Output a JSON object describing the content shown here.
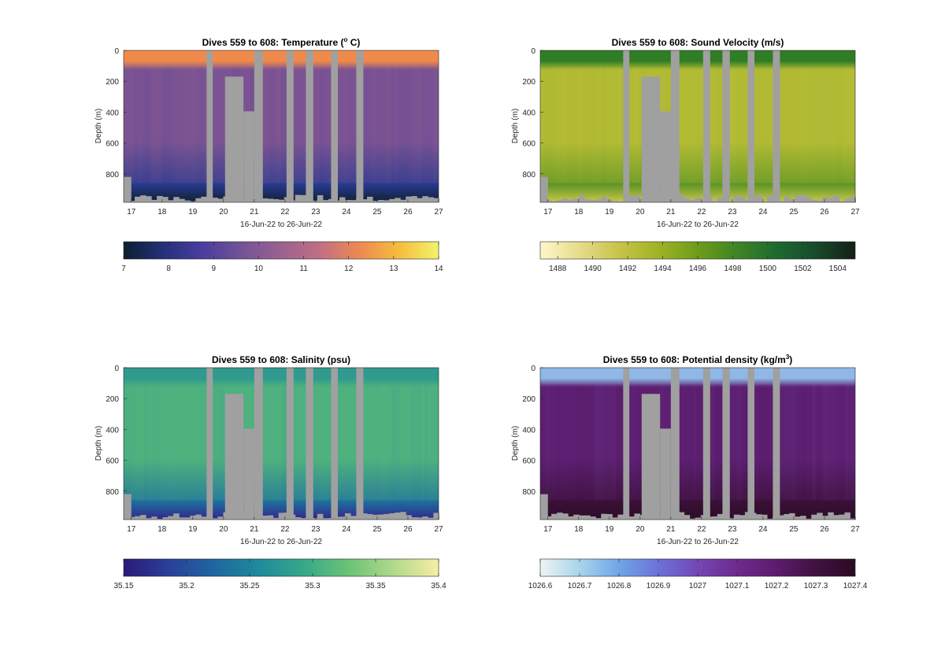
{
  "chart_data": [
    {
      "type": "heatmap",
      "title": "Dives 559 to 608: Temperature (",
      "title_sup": "o",
      "title_tail": " C)",
      "xlabel": "16-Jun-22 to 26-Jun-22",
      "ylabel": "Depth (m)",
      "x_ticks": [
        "17",
        "18",
        "19",
        "20",
        "21",
        "22",
        "23",
        "24",
        "25",
        "26",
        "27"
      ],
      "x_range": [
        16.75,
        27
      ],
      "y_ticks": [
        "0",
        "200",
        "400",
        "600",
        "800"
      ],
      "y_range": [
        0,
        985
      ],
      "y_reversed": true,
      "colorbar": {
        "range": [
          7,
          14
        ],
        "ticks": [
          "7",
          "8",
          "9",
          "10",
          "11",
          "12",
          "13",
          "14"
        ],
        "colormap": [
          "#0b1f2e",
          "#25307a",
          "#4a3d9f",
          "#735396",
          "#9a6291",
          "#c26f82",
          "#ed8a52",
          "#f6bd3c",
          "#f2f36e"
        ]
      },
      "surface_color": "#f08a4b",
      "body_color": "#7a5394",
      "deep_color": "#283a8f",
      "bottom_color": "#102034",
      "nodata_color": "#a0a0a0"
    },
    {
      "type": "heatmap",
      "title": "Dives 559 to 608: Sound Velocity (m/s)",
      "xlabel": "16-Jun-22 to 26-Jun-22",
      "ylabel": "Depth (m)",
      "x_ticks": [
        "17",
        "18",
        "19",
        "20",
        "21",
        "22",
        "23",
        "24",
        "25",
        "26",
        "27"
      ],
      "x_range": [
        16.75,
        27
      ],
      "y_ticks": [
        "0",
        "200",
        "400",
        "600",
        "800"
      ],
      "y_range": [
        0,
        985
      ],
      "y_reversed": true,
      "colorbar": {
        "range": [
          1487,
          1505
        ],
        "ticks": [
          "1488",
          "1490",
          "1492",
          "1494",
          "1496",
          "1498",
          "1500",
          "1502",
          "1504"
        ],
        "colormap": [
          "#fdf7cc",
          "#e6dc8a",
          "#c7c34a",
          "#9fb325",
          "#6e9c1a",
          "#3f8424",
          "#1d6a30",
          "#174a2a",
          "#141f16"
        ]
      },
      "surface_color": "#2f7d25",
      "body_color": "#b5bc35",
      "deep_color": "#5d9526",
      "bottom_color": "#c9c848",
      "nodata_color": "#a0a0a0"
    },
    {
      "type": "heatmap",
      "title": "Dives 559 to 608: Salinity (psu)",
      "xlabel": "16-Jun-22 to 26-Jun-22",
      "ylabel": "Depth (m)",
      "x_ticks": [
        "17",
        "18",
        "19",
        "20",
        "21",
        "22",
        "23",
        "24",
        "25",
        "26",
        "27"
      ],
      "x_range": [
        16.75,
        27
      ],
      "y_ticks": [
        "0",
        "200",
        "400",
        "600",
        "800"
      ],
      "y_range": [
        0,
        985
      ],
      "y_reversed": true,
      "colorbar": {
        "range": [
          35.15,
          35.4
        ],
        "ticks": [
          "35.15",
          "35.2",
          "35.25",
          "35.3",
          "35.35",
          "35.4"
        ],
        "colormap": [
          "#2b1a78",
          "#2a3f9a",
          "#1f66a0",
          "#1e8a9c",
          "#36a88a",
          "#6cc276",
          "#b1d98a",
          "#f6eea4"
        ]
      },
      "surface_color": "#2f9a8d",
      "body_color": "#4fb27e",
      "deep_color": "#1f6e9e",
      "bottom_color": "#32268a",
      "nodata_color": "#a0a0a0"
    },
    {
      "type": "heatmap",
      "title": "Dives 559 to 608: Potential density (kg/m",
      "title_sup": "3",
      "title_tail": ")",
      "xlabel": "16-Jun-22 to 26-Jun-22",
      "ylabel": "Depth (m)",
      "x_ticks": [
        "17",
        "18",
        "19",
        "20",
        "21",
        "22",
        "23",
        "24",
        "25",
        "26",
        "27"
      ],
      "x_range": [
        16.75,
        27
      ],
      "y_ticks": [
        "0",
        "200",
        "400",
        "600",
        "800"
      ],
      "y_range": [
        0,
        985
      ],
      "y_reversed": true,
      "colorbar": {
        "range": [
          1026.6,
          1027.4
        ],
        "ticks": [
          "1026.6",
          "1026.7",
          "1026.8",
          "1026.9",
          "1027",
          "1027.1",
          "1027.2",
          "1027.3",
          "1027.4"
        ],
        "colormap": [
          "#eef4f3",
          "#a8d4ec",
          "#6fa5e6",
          "#6b72d8",
          "#7447b3",
          "#6e2a8e",
          "#5c1c6e",
          "#40123f",
          "#2a0a24"
        ]
      },
      "surface_color": "#8fb8e6",
      "body_color": "#5d1f72",
      "deep_color": "#3a1036",
      "bottom_color": "#2d0c2b",
      "nodata_color": "#a0a0a0"
    }
  ],
  "gaps": [
    {
      "x0": 19.45,
      "x1": 19.65,
      "depth_top": 0
    },
    {
      "x0": 20.05,
      "x1": 20.65,
      "depth_top": 170
    },
    {
      "x0": 20.65,
      "x1": 21.0,
      "depth_top": 395
    },
    {
      "x0": 21.0,
      "x1": 21.28,
      "depth_top": 0
    },
    {
      "x0": 22.05,
      "x1": 22.28,
      "depth_top": 0
    },
    {
      "x0": 22.68,
      "x1": 22.92,
      "depth_top": 0
    },
    {
      "x0": 23.5,
      "x1": 23.72,
      "depth_top": 0
    },
    {
      "x0": 24.32,
      "x1": 24.55,
      "depth_top": 0
    }
  ]
}
